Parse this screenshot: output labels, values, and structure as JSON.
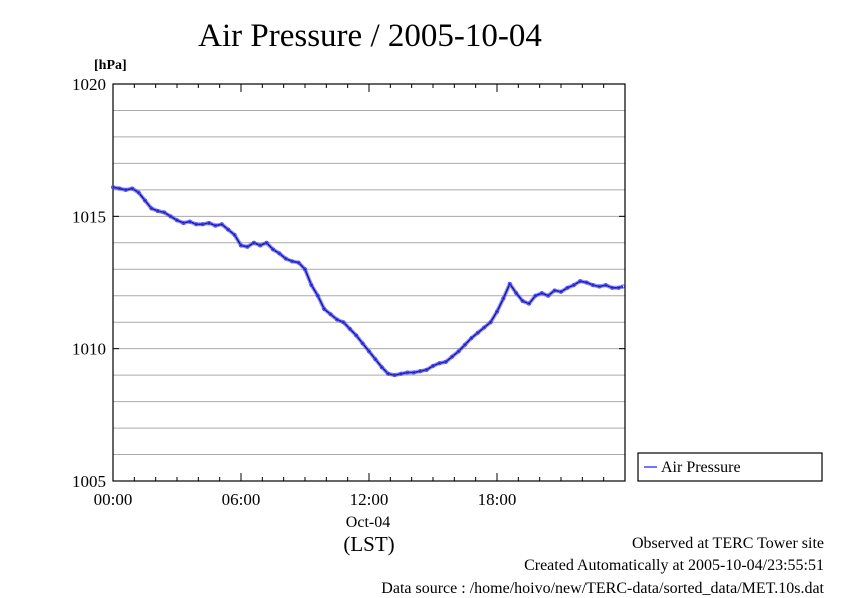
{
  "chart_data": {
    "type": "line",
    "title": "Air Pressure / 2005-10-04",
    "ylabel": "[hPa]",
    "ylim": [
      1005,
      1020
    ],
    "yticks": [
      "1005",
      "1010",
      "1015",
      "1020"
    ],
    "xlim": [
      0,
      24
    ],
    "xticks": [
      "00:00",
      "06:00",
      "12:00",
      "18:00"
    ],
    "xtick_values": [
      0,
      6,
      12,
      18
    ],
    "date_label": "Oct-04",
    "time_zone_label": "(LST)",
    "grid": true,
    "legend": {
      "position": "right",
      "entries": [
        "Air Pressure"
      ]
    },
    "series": [
      {
        "name": "Air Pressure",
        "color": "#4444ff",
        "x": [
          0,
          0.3,
          0.6,
          0.9,
          1.2,
          1.5,
          1.8,
          2.1,
          2.4,
          2.7,
          3.0,
          3.3,
          3.6,
          3.9,
          4.2,
          4.5,
          4.8,
          5.1,
          5.4,
          5.7,
          6.0,
          6.3,
          6.6,
          6.9,
          7.2,
          7.5,
          7.8,
          8.1,
          8.4,
          8.7,
          9.0,
          9.3,
          9.6,
          9.9,
          10.2,
          10.5,
          10.8,
          11.1,
          11.4,
          11.7,
          12.0,
          12.3,
          12.6,
          12.9,
          13.2,
          13.5,
          13.8,
          14.1,
          14.4,
          14.7,
          15.0,
          15.3,
          15.6,
          15.9,
          16.2,
          16.5,
          16.8,
          17.1,
          17.4,
          17.7,
          18.0,
          18.3,
          18.6,
          18.9,
          19.2,
          19.5,
          19.8,
          20.1,
          20.4,
          20.7,
          21.0,
          21.3,
          21.6,
          21.9,
          22.2,
          22.5,
          22.8,
          23.1,
          23.4,
          23.7,
          23.9
        ],
        "values": [
          1016.1,
          1016.05,
          1016.0,
          1016.05,
          1015.9,
          1015.6,
          1015.3,
          1015.2,
          1015.15,
          1015.0,
          1014.85,
          1014.75,
          1014.8,
          1014.7,
          1014.7,
          1014.75,
          1014.65,
          1014.7,
          1014.5,
          1014.3,
          1013.9,
          1013.85,
          1014.0,
          1013.9,
          1014.0,
          1013.75,
          1013.6,
          1013.4,
          1013.3,
          1013.25,
          1013.0,
          1012.4,
          1012.0,
          1011.5,
          1011.3,
          1011.1,
          1011.0,
          1010.75,
          1010.5,
          1010.2,
          1009.9,
          1009.6,
          1009.3,
          1009.05,
          1009.0,
          1009.05,
          1009.1,
          1009.1,
          1009.15,
          1009.2,
          1009.35,
          1009.45,
          1009.5,
          1009.7,
          1009.9,
          1010.15,
          1010.4,
          1010.6,
          1010.8,
          1011.0,
          1011.4,
          1011.9,
          1012.45,
          1012.1,
          1011.8,
          1011.7,
          1012.0,
          1012.1,
          1012.0,
          1012.2,
          1012.15,
          1012.3,
          1012.4,
          1012.55,
          1012.5,
          1012.4,
          1012.35,
          1012.4,
          1012.3,
          1012.3,
          1012.35
        ]
      }
    ]
  },
  "footer": {
    "site": "Observed at TERC Tower site",
    "created": "Created Automatically at 2005-10-04/23:55:51",
    "source": "Data source : /home/hoivo/new/TERC-data/sorted_data/MET.10s.dat"
  }
}
